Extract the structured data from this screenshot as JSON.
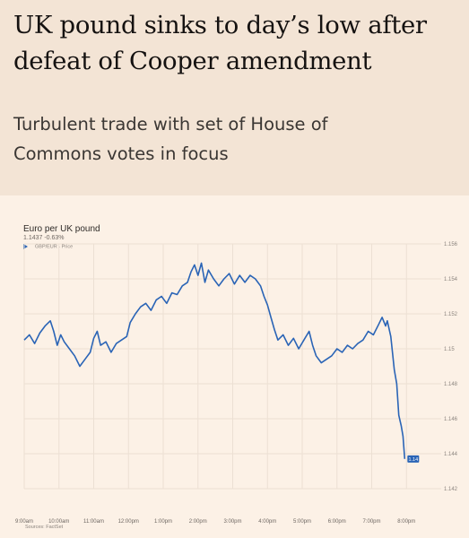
{
  "article": {
    "headline_line1": "UK pound sinks to day’s low after",
    "headline_line2": "defeat of Cooper amendment",
    "standfirst_line1": "Turbulent trade with set of House of",
    "standfirst_line2": "Commons votes in focus"
  },
  "chart_data": {
    "type": "line",
    "title": "Euro per UK pound",
    "subtitle": "1.1437 -0.63%",
    "legend": "GBP/EUR - Price",
    "source": "Sources: FactSet",
    "last_value_label": "1.14",
    "x_ticks": [
      {
        "label": "9:00am",
        "value": 9
      },
      {
        "label": "10:00am",
        "value": 10
      },
      {
        "label": "11:00am",
        "value": 11
      },
      {
        "label": "12:00pm",
        "value": 12
      },
      {
        "label": "1:00pm",
        "value": 13
      },
      {
        "label": "2:00pm",
        "value": 14
      },
      {
        "label": "3:00pm",
        "value": 15
      },
      {
        "label": "4:00pm",
        "value": 16
      },
      {
        "label": "5:00pm",
        "value": 17
      },
      {
        "label": "6:00pm",
        "value": 18
      },
      {
        "label": "7:00pm",
        "value": 19
      },
      {
        "label": "8:00pm",
        "value": 20
      }
    ],
    "y_ticks": [
      1.142,
      1.144,
      1.146,
      1.148,
      1.15,
      1.152,
      1.154,
      1.156
    ],
    "y_tick_labels": [
      "1.142",
      "1.144",
      "1.146",
      "1.148",
      "1.15",
      "1.152",
      "1.154",
      "1.156"
    ],
    "xlim": [
      9,
      21
    ],
    "ylim": [
      1.142,
      1.156
    ],
    "grid": true,
    "series": [
      {
        "name": "GBP/EUR - Price",
        "color": "#2a64b6",
        "points": [
          [
            9.0,
            1.1505
          ],
          [
            9.15,
            1.1508
          ],
          [
            9.3,
            1.1503
          ],
          [
            9.45,
            1.1509
          ],
          [
            9.6,
            1.1513
          ],
          [
            9.75,
            1.1516
          ],
          [
            9.85,
            1.151
          ],
          [
            9.95,
            1.1502
          ],
          [
            10.05,
            1.1508
          ],
          [
            10.15,
            1.1504
          ],
          [
            10.3,
            1.15
          ],
          [
            10.45,
            1.1496
          ],
          [
            10.6,
            1.149
          ],
          [
            10.75,
            1.1494
          ],
          [
            10.9,
            1.1498
          ],
          [
            11.0,
            1.1506
          ],
          [
            11.1,
            1.151
          ],
          [
            11.2,
            1.1502
          ],
          [
            11.35,
            1.1504
          ],
          [
            11.5,
            1.1498
          ],
          [
            11.65,
            1.1503
          ],
          [
            11.8,
            1.1505
          ],
          [
            11.95,
            1.1507
          ],
          [
            12.05,
            1.1515
          ],
          [
            12.2,
            1.152
          ],
          [
            12.35,
            1.1524
          ],
          [
            12.5,
            1.1526
          ],
          [
            12.65,
            1.1522
          ],
          [
            12.8,
            1.1528
          ],
          [
            12.95,
            1.153
          ],
          [
            13.1,
            1.1526
          ],
          [
            13.25,
            1.1532
          ],
          [
            13.4,
            1.1531
          ],
          [
            13.55,
            1.1536
          ],
          [
            13.7,
            1.1538
          ],
          [
            13.8,
            1.1544
          ],
          [
            13.9,
            1.1548
          ],
          [
            14.0,
            1.1542
          ],
          [
            14.1,
            1.1549
          ],
          [
            14.2,
            1.1538
          ],
          [
            14.3,
            1.1545
          ],
          [
            14.45,
            1.154
          ],
          [
            14.6,
            1.1536
          ],
          [
            14.75,
            1.154
          ],
          [
            14.9,
            1.1543
          ],
          [
            15.05,
            1.1537
          ],
          [
            15.2,
            1.1542
          ],
          [
            15.35,
            1.1538
          ],
          [
            15.5,
            1.1542
          ],
          [
            15.65,
            1.154
          ],
          [
            15.8,
            1.1536
          ],
          [
            15.9,
            1.153
          ],
          [
            16.0,
            1.1525
          ],
          [
            16.1,
            1.1518
          ],
          [
            16.2,
            1.1511
          ],
          [
            16.3,
            1.1505
          ],
          [
            16.45,
            1.1508
          ],
          [
            16.6,
            1.1502
          ],
          [
            16.75,
            1.1506
          ],
          [
            16.9,
            1.15
          ],
          [
            17.05,
            1.1505
          ],
          [
            17.2,
            1.151
          ],
          [
            17.3,
            1.1502
          ],
          [
            17.4,
            1.1496
          ],
          [
            17.55,
            1.1492
          ],
          [
            17.7,
            1.1494
          ],
          [
            17.85,
            1.1496
          ],
          [
            18.0,
            1.15
          ],
          [
            18.15,
            1.1498
          ],
          [
            18.3,
            1.1502
          ],
          [
            18.45,
            1.15
          ],
          [
            18.6,
            1.1503
          ],
          [
            18.75,
            1.1505
          ],
          [
            18.9,
            1.151
          ],
          [
            19.05,
            1.1508
          ],
          [
            19.2,
            1.1514
          ],
          [
            19.3,
            1.1518
          ],
          [
            19.4,
            1.1513
          ],
          [
            19.45,
            1.1516
          ],
          [
            19.55,
            1.1507
          ],
          [
            19.65,
            1.1488
          ],
          [
            19.72,
            1.148
          ],
          [
            19.78,
            1.1462
          ],
          [
            19.85,
            1.1456
          ],
          [
            19.9,
            1.145
          ],
          [
            19.95,
            1.1437
          ]
        ]
      }
    ]
  }
}
